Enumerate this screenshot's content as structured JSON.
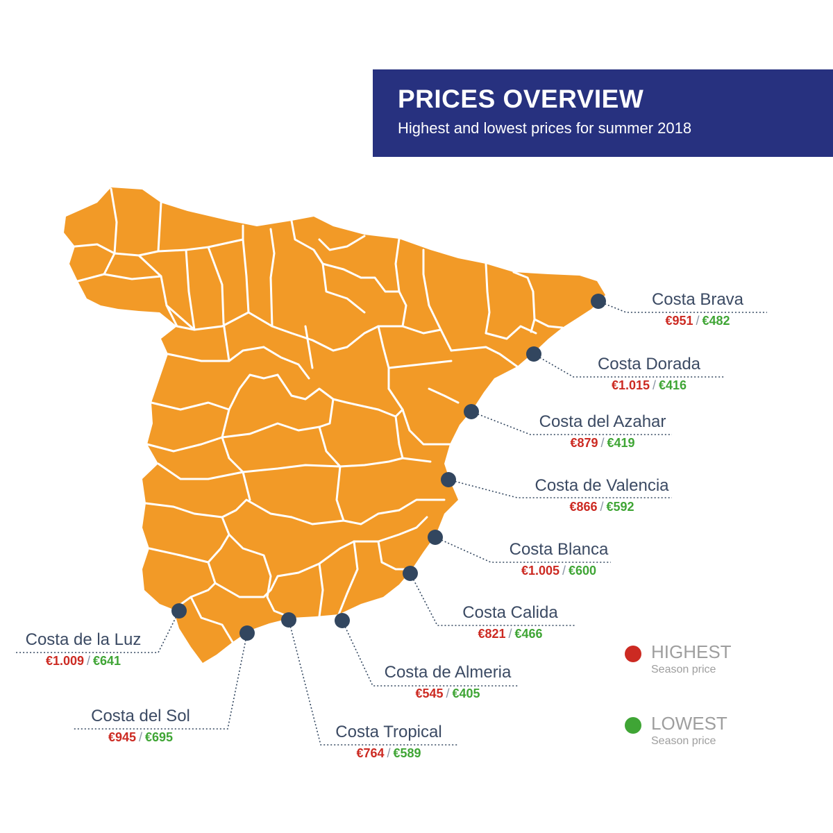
{
  "header": {
    "title": "PRICES OVERVIEW",
    "subtitle": "Highest and lowest prices for summer 2018"
  },
  "colors": {
    "header_bg": "#27317f",
    "map_fill": "#f29a27",
    "border": "#ffffff",
    "marker": "#32465f",
    "highest": "#cc2a22",
    "lowest": "#3fa535"
  },
  "separator": "/",
  "locations": [
    {
      "name": "Costa Brava",
      "highest": "€951",
      "lowest": "€482"
    },
    {
      "name": "Costa Dorada",
      "highest": "€1.015",
      "lowest": "€416"
    },
    {
      "name": "Costa del Azahar",
      "highest": "€879",
      "lowest": "€419"
    },
    {
      "name": "Costa de Valencia",
      "highest": "€866",
      "lowest": "€592"
    },
    {
      "name": "Costa Blanca",
      "highest": "€1.005",
      "lowest": "€600"
    },
    {
      "name": "Costa Calida",
      "highest": "€821",
      "lowest": "€466"
    },
    {
      "name": "Costa de Almeria",
      "highest": "€545",
      "lowest": "€405"
    },
    {
      "name": "Costa Tropical",
      "highest": "€764",
      "lowest": "€589"
    },
    {
      "name": "Costa del Sol",
      "highest": "€945",
      "lowest": "€695"
    },
    {
      "name": "Costa de la Luz",
      "highest": "€1.009",
      "lowest": "€641"
    }
  ],
  "legend": {
    "highest": {
      "title": "HIGHEST",
      "subtitle": "Season price"
    },
    "lowest": {
      "title": "LOWEST",
      "subtitle": "Season price"
    }
  }
}
